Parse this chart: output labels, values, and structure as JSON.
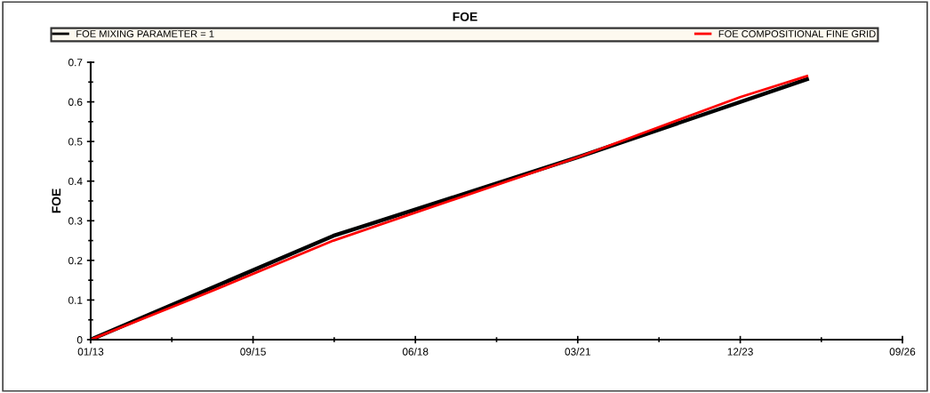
{
  "chart_data": {
    "type": "line",
    "title": "FOE",
    "ylabel": "FOE",
    "series": [
      {
        "name": "FOE MIXING PARAMETER = 1",
        "color": "#000000",
        "x": [
          "2013-01-01",
          "2017-02-04",
          "2021-03-19",
          "2025-01-30"
        ],
        "values": [
          0,
          0.262,
          0.46,
          0.657
        ]
      },
      {
        "name": "FOE COMPOSITIONAL FINE GRID",
        "color": "#ff0000",
        "x": [
          "2013-01-01",
          "2015-01-01",
          "2017-02-04",
          "2021-03-19",
          "2023-12-15",
          "2025-01-30"
        ],
        "values": [
          0,
          0.12,
          0.25,
          0.46,
          0.612,
          0.665
        ]
      }
    ],
    "xlim": [
      "2013-01-01",
      "2026-09-10"
    ],
    "xticks": [
      {
        "value": "2013-01-01",
        "label": "01/13"
      },
      {
        "value": "2015-09-28",
        "label": "09/15"
      },
      {
        "value": "2018-06-24",
        "label": "06/18"
      },
      {
        "value": "2021-03-20",
        "label": "03/21"
      },
      {
        "value": "2023-12-16",
        "label": "12/23"
      },
      {
        "value": "2026-09-10",
        "label": "09/26"
      }
    ],
    "ylim": [
      0,
      0.7
    ],
    "yticks": [
      0,
      0.1,
      0.2,
      0.3,
      0.4,
      0.5,
      0.6,
      0.7
    ],
    "grid": false,
    "legend": "top",
    "marker": "none",
    "line_style": "solid"
  }
}
